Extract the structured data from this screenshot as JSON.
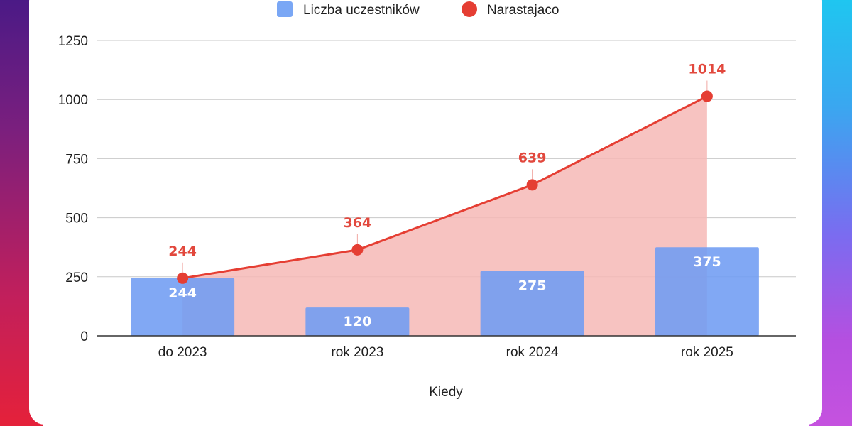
{
  "chart_data": {
    "type": "bar",
    "categories": [
      "do 2023",
      "rok 2023",
      "rok 2024",
      "rok 2025"
    ],
    "series": [
      {
        "name": "Liczba uczestników",
        "type": "bar",
        "values": [
          244,
          120,
          275,
          375
        ],
        "color": "#6f9cf2"
      },
      {
        "name": "Narastajaco",
        "type": "line",
        "values": [
          244,
          364,
          639,
          1014
        ],
        "color": "#e53e33",
        "fill": "#f6b8b6"
      }
    ],
    "xlabel": "Kiedy",
    "ylabel": "",
    "ylim": [
      0,
      1250
    ],
    "yticks": [
      0,
      250,
      500,
      750,
      1000,
      1250
    ],
    "grid": true,
    "legend": "top-center",
    "data_labels": true
  }
}
